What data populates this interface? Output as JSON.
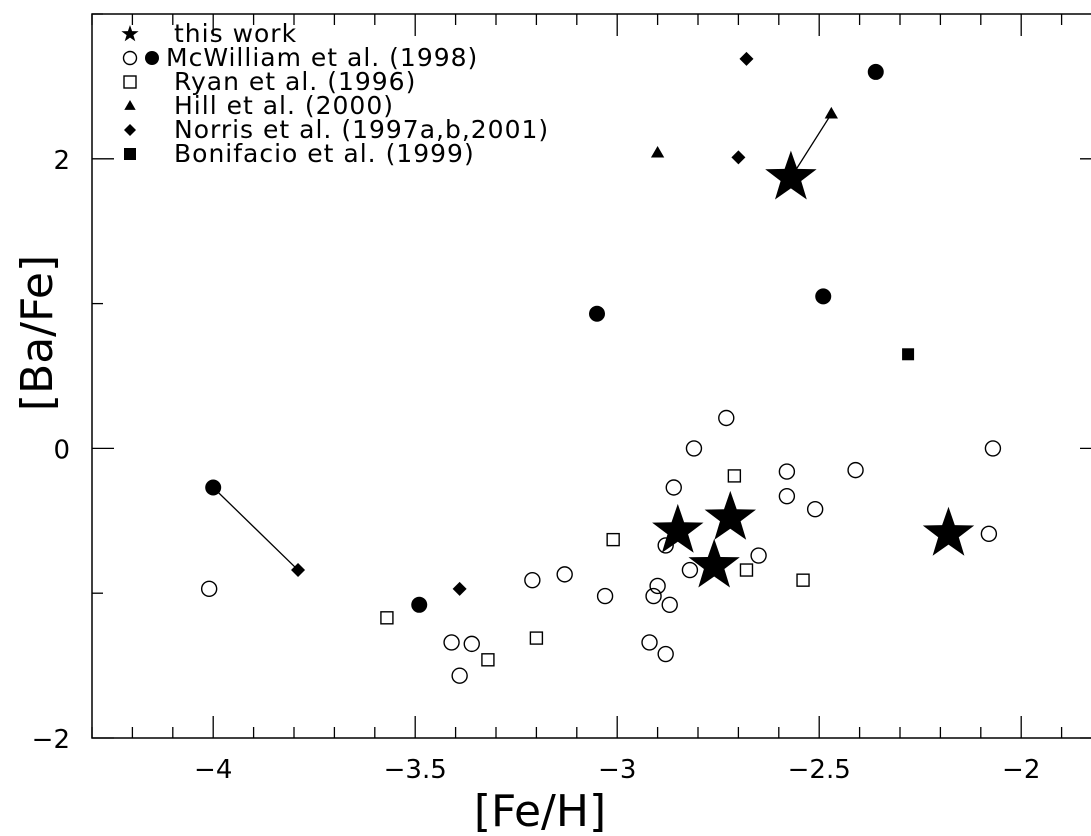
{
  "chart_data": {
    "type": "scatter",
    "xlabel": "[Fe/H]",
    "ylabel": "[Ba/Fe]",
    "xlim": [
      -4.3,
      -1.8
    ],
    "ylim": [
      -2,
      3
    ],
    "x_major_ticks": [
      -4,
      -3.5,
      -3,
      -2.5,
      -2
    ],
    "x_tick_labels": [
      "−4",
      "−3.5",
      "−3",
      "−2.5",
      "−2"
    ],
    "y_major_ticks": [
      -2,
      0,
      2
    ],
    "y_tick_labels": [
      "−2",
      "0",
      "2"
    ],
    "legend_position": "top-left",
    "series": [
      {
        "name": "this work",
        "marker": "star",
        "points": [
          [
            -2.57,
            1.87
          ],
          [
            -2.85,
            -0.57
          ],
          [
            -2.72,
            -0.48
          ],
          [
            -2.76,
            -0.81
          ],
          [
            -2.18,
            -0.59
          ]
        ]
      },
      {
        "name": "McWilliam et al. (1998)",
        "marker": "circle-open",
        "points": [
          [
            -4.01,
            -0.97
          ],
          [
            -3.41,
            -1.34
          ],
          [
            -3.39,
            -1.57
          ],
          [
            -3.36,
            -1.35
          ],
          [
            -3.21,
            -0.91
          ],
          [
            -3.13,
            -0.87
          ],
          [
            -3.03,
            -1.02
          ],
          [
            -2.92,
            -1.34
          ],
          [
            -2.91,
            -1.02
          ],
          [
            -2.9,
            -0.95
          ],
          [
            -2.88,
            -1.42
          ],
          [
            -2.87,
            -1.08
          ],
          [
            -2.88,
            -0.67
          ],
          [
            -2.86,
            -0.27
          ],
          [
            -2.82,
            -0.84
          ],
          [
            -2.81,
            0.0
          ],
          [
            -2.73,
            0.21
          ],
          [
            -2.65,
            -0.74
          ],
          [
            -2.58,
            -0.33
          ],
          [
            -2.58,
            -0.16
          ],
          [
            -2.51,
            -0.42
          ],
          [
            -2.41,
            -0.15
          ],
          [
            -2.07,
            0.0
          ],
          [
            -2.08,
            -0.59
          ]
        ]
      },
      {
        "name": "",
        "marker": "circle-filled",
        "points": [
          [
            -4.0,
            -0.27
          ],
          [
            -3.49,
            -1.08
          ],
          [
            -3.05,
            0.93
          ],
          [
            -2.49,
            1.05
          ],
          [
            -2.36,
            2.6
          ]
        ]
      },
      {
        "name": "Ryan et al. (1996)",
        "marker": "square-open",
        "points": [
          [
            -3.57,
            -1.17
          ],
          [
            -3.32,
            -1.46
          ],
          [
            -3.2,
            -1.31
          ],
          [
            -3.01,
            -0.63
          ],
          [
            -2.71,
            -0.19
          ],
          [
            -2.68,
            -0.84
          ],
          [
            -2.54,
            -0.91
          ]
        ]
      },
      {
        "name": "Hill et al. (2000)",
        "marker": "triangle-filled",
        "points": [
          [
            -2.9,
            2.04
          ],
          [
            -2.47,
            2.31
          ]
        ]
      },
      {
        "name": "Norris et al. (1997a,b,2001)",
        "marker": "diamond-filled",
        "points": [
          [
            -2.68,
            2.69
          ],
          [
            -2.7,
            2.01
          ],
          [
            -3.79,
            -0.84
          ],
          [
            -3.39,
            -0.97
          ]
        ]
      },
      {
        "name": "Bonifacio et al. (1999)",
        "marker": "square-filled",
        "points": [
          [
            -2.28,
            0.65
          ]
        ]
      }
    ],
    "connectors": [
      [
        [
          -2.57,
          1.87
        ],
        [
          -2.47,
          2.31
        ]
      ],
      [
        [
          -4.0,
          -0.27
        ],
        [
          -3.79,
          -0.84
        ]
      ]
    ],
    "legend": [
      {
        "markers": [
          "star"
        ],
        "label": "this work"
      },
      {
        "markers": [
          "circle-open",
          "circle-filled"
        ],
        "label": "McWilliam et al. (1998)"
      },
      {
        "markers": [
          "square-open"
        ],
        "label": "Ryan et al. (1996)"
      },
      {
        "markers": [
          "triangle-filled"
        ],
        "label": "Hill et al. (2000)"
      },
      {
        "markers": [
          "diamond-filled"
        ],
        "label": "Norris et al. (1997a,b,2001)"
      },
      {
        "markers": [
          "square-filled"
        ],
        "label": "Bonifacio et al. (1999)"
      }
    ],
    "colors": {
      "ink": "#000000",
      "background": "#ffffff"
    }
  }
}
